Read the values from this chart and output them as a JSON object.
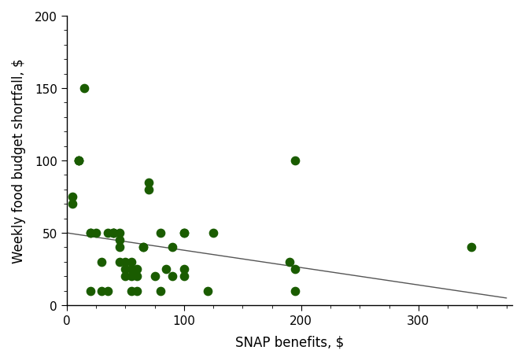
{
  "x_points": [
    5,
    5,
    10,
    10,
    10,
    15,
    20,
    20,
    20,
    25,
    30,
    30,
    35,
    35,
    40,
    40,
    40,
    45,
    45,
    45,
    45,
    50,
    50,
    50,
    55,
    55,
    55,
    55,
    60,
    60,
    60,
    65,
    65,
    70,
    70,
    75,
    80,
    80,
    85,
    90,
    90,
    100,
    100,
    100,
    100,
    120,
    125,
    190,
    195,
    195,
    195,
    345
  ],
  "y_points": [
    75,
    70,
    100,
    100,
    100,
    150,
    50,
    50,
    10,
    50,
    30,
    10,
    50,
    10,
    50,
    50,
    50,
    40,
    30,
    45,
    50,
    30,
    25,
    20,
    30,
    25,
    20,
    10,
    25,
    20,
    10,
    40,
    40,
    85,
    80,
    20,
    50,
    10,
    25,
    40,
    20,
    50,
    50,
    25,
    20,
    10,
    50,
    30,
    25,
    100,
    10,
    40
  ],
  "dot_color": "#1a5c00",
  "line_color": "#555555",
  "xlabel": "SNAP benefits, $",
  "ylabel": "Weekly food budget shortfall, $",
  "xlim": [
    0,
    380
  ],
  "ylim": [
    0,
    200
  ],
  "xticks": [
    0,
    100,
    200,
    300
  ],
  "yticks": [
    0,
    50,
    100,
    150,
    200
  ],
  "line_x0": 0,
  "line_y0": 50,
  "line_x1": 375,
  "line_y1": 5,
  "marker_size": 55,
  "background_color": "#ffffff",
  "spine_color": "#000000",
  "tick_color": "#000000",
  "label_fontsize": 12,
  "tick_fontsize": 11
}
